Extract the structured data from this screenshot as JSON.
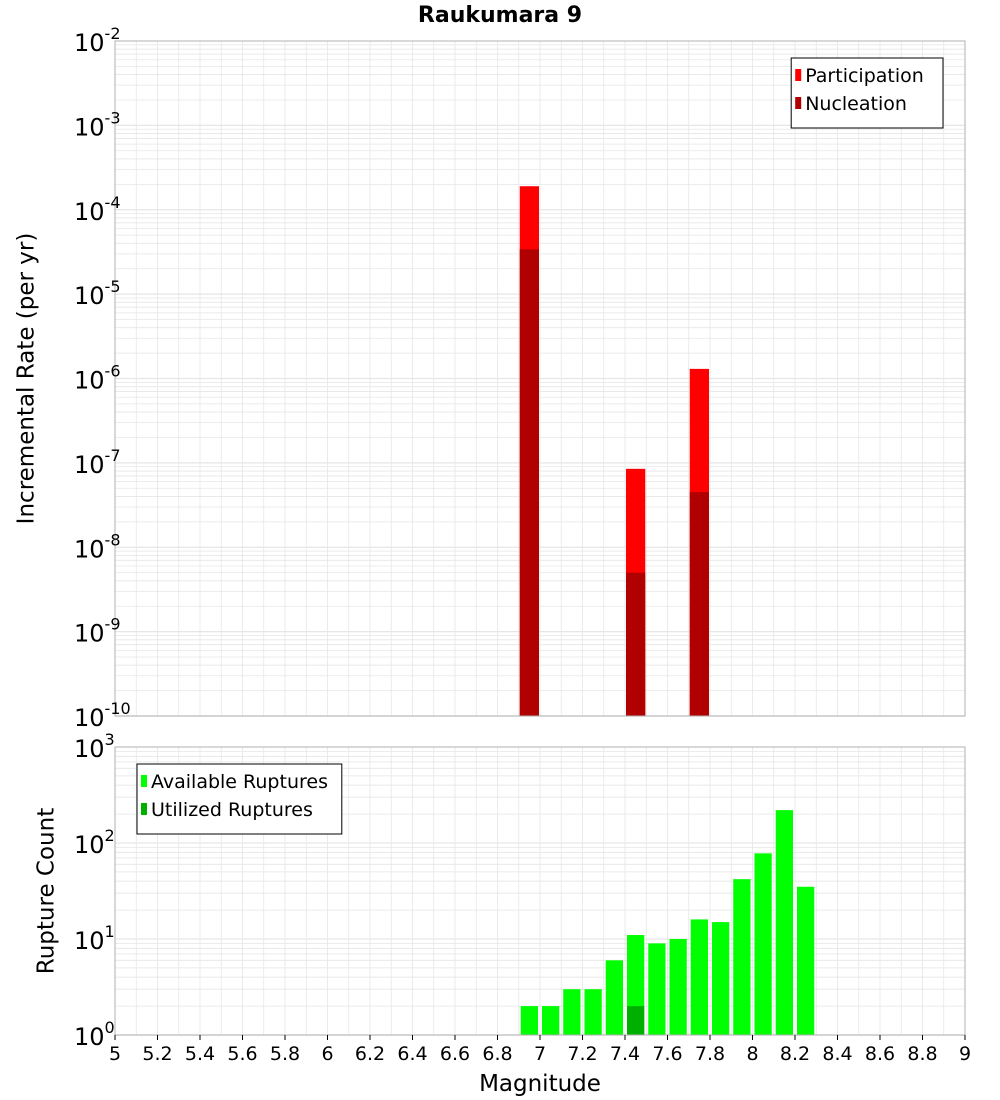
{
  "title": "Raukumara 9",
  "colors": {
    "participation": "#ff0000",
    "nucleation": "#b00000",
    "available": "#00ff00",
    "utilized": "#00b000",
    "grid": "#e6e6e6"
  },
  "chart_data": [
    {
      "type": "bar",
      "ylabel": "Incremental Rate (per yr)",
      "y_scale": "log",
      "ylim": [
        1e-10,
        0.01
      ],
      "xlim": [
        5,
        9
      ],
      "bin_width": 0.1,
      "grid": true,
      "legend_position": "top-right",
      "series": [
        {
          "name": "Participation",
          "color": "#ff0000",
          "x": [
            6.95,
            7.45,
            7.75
          ],
          "values": [
            0.00019,
            8.5e-08,
            1.3e-06
          ]
        },
        {
          "name": "Nucleation",
          "color": "#b00000",
          "x": [
            6.95,
            7.45,
            7.75
          ],
          "values": [
            3.4e-05,
            5e-09,
            4.5e-08
          ]
        }
      ]
    },
    {
      "type": "bar",
      "ylabel": "Rupture Count",
      "xlabel": "Magnitude",
      "y_scale": "log",
      "ylim": [
        1,
        1000
      ],
      "xlim": [
        5,
        9
      ],
      "bin_width": 0.1,
      "grid": true,
      "legend_position": "top-left",
      "x_ticks": [
        "5",
        "5.2",
        "5.4",
        "5.6",
        "5.8",
        "6",
        "6.2",
        "6.4",
        "6.6",
        "6.8",
        "7",
        "7.2",
        "7.4",
        "7.6",
        "7.8",
        "8",
        "8.2",
        "8.4",
        "8.6",
        "8.8",
        "9"
      ],
      "series": [
        {
          "name": "Available Ruptures",
          "color": "#00ff00",
          "x": [
            6.25,
            6.85,
            6.95,
            7.05,
            7.15,
            7.25,
            7.35,
            7.45,
            7.55,
            7.65,
            7.75,
            7.85,
            7.95,
            8.05,
            8.15,
            8.25
          ],
          "values": [
            1,
            1,
            2,
            2,
            3,
            3,
            6,
            11,
            9,
            10,
            16,
            15,
            42,
            78,
            220,
            35
          ]
        },
        {
          "name": "Utilized Ruptures",
          "color": "#00b000",
          "x": [
            6.95,
            7.45,
            7.75
          ],
          "values": [
            1,
            2,
            1
          ]
        }
      ]
    }
  ]
}
